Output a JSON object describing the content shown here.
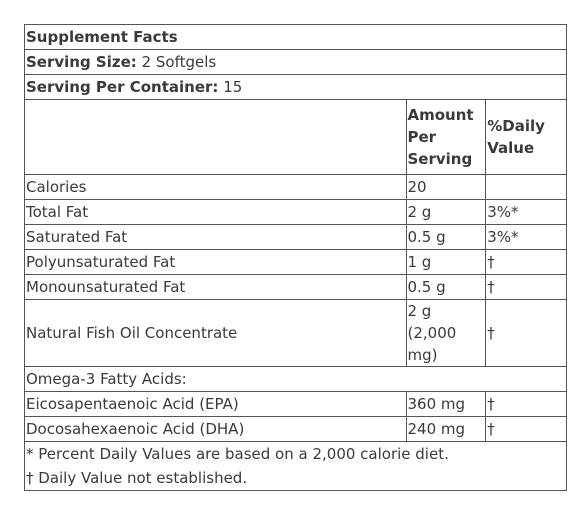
{
  "title": "Supplement Facts",
  "serving_size": {
    "label": "Serving Size:",
    "value": "2 Softgels"
  },
  "servings_per_container": {
    "label": "Serving Per Container:",
    "value": "15"
  },
  "columns": {
    "amount": "Amount Per Serving",
    "daily_value": "%Daily Value"
  },
  "rows": [
    {
      "name": "Calories",
      "amount": "20",
      "dv": ""
    },
    {
      "name": "Total Fat",
      "amount": "2 g",
      "dv": "3%*"
    },
    {
      "name": "Saturated Fat",
      "amount": "0.5 g",
      "dv": "3%*"
    },
    {
      "name": "Polyunsaturated Fat",
      "amount": "1 g",
      "dv": "†"
    },
    {
      "name": "Monounsaturated Fat",
      "amount": "0.5 g",
      "dv": "†"
    },
    {
      "name": "Natural Fish Oil Concentrate",
      "amount": "2 g (2,000 mg)",
      "dv": "†"
    }
  ],
  "omega_heading": "Omega-3 Fatty Acids:",
  "omega_rows": [
    {
      "name": "Eicosapentaenoic Acid (EPA)",
      "amount": "360 mg",
      "dv": "†"
    },
    {
      "name": "Docosahexaenoic Acid (DHA)",
      "amount": "240 mg",
      "dv": "†"
    }
  ],
  "footnotes": [
    "* Percent Daily Values are based on a 2,000 calorie diet.",
    "† Daily Value not established."
  ]
}
